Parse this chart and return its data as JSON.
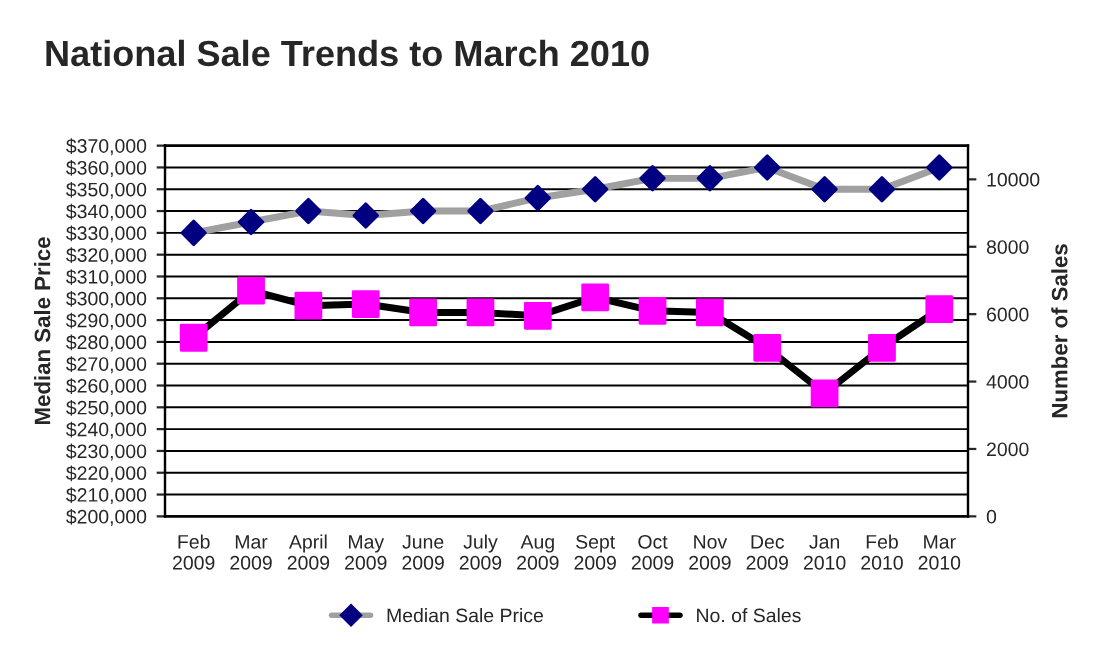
{
  "chart_data": {
    "type": "line",
    "title": "National Sale Trends to March 2010",
    "ylabel": "Median Sale Price",
    "y2label": "Number of Sales",
    "categories": [
      "Feb\n2009",
      "Mar\n2009",
      "April\n2009",
      "May\n2009",
      "June\n2009",
      "July\n2009",
      "Aug\n2009",
      "Sept\n2009",
      "Oct\n2009",
      "Nov\n2009",
      "Dec\n2009",
      "Jan\n2010",
      "Feb\n2010",
      "Mar\n2010"
    ],
    "series": [
      {
        "name": "Median Sale Price",
        "color": "#a0a0a0",
        "colors": [
          "#000080",
          "#000080",
          "#000080",
          "#000080",
          "#000080",
          "#000080",
          "#000080",
          "#000080",
          "#000080",
          "#000080",
          "#000080",
          "#000080",
          "#000080",
          "#000080"
        ],
        "marker": "diamond",
        "values": [
          330000,
          335000,
          340000,
          338000,
          340000,
          340000,
          346000,
          350000,
          355000,
          355000,
          360000,
          350000,
          350000,
          360000
        ]
      },
      {
        "name": "No. of Sales",
        "color": "#000000",
        "colors": [
          "#ff00ff",
          "#ff00ff",
          "#ff00ff",
          "#ff00ff",
          "#ff00ff",
          "#ff00ff",
          "#ff00ff",
          "#ff00ff",
          "#ff00ff",
          "#ff00ff",
          "#ff00ff",
          "#ff00ff",
          "#ff00ff",
          "#ff00ff"
        ],
        "marker": "square",
        "axis": "y2",
        "values": [
          5300,
          6700,
          6250,
          6300,
          6050,
          6050,
          5950,
          6500,
          6100,
          6050,
          5000,
          3650,
          5000,
          6150
        ]
      }
    ],
    "ylim": [
      200000,
      370000
    ],
    "yticks": [
      {
        "value": 200000,
        "label": "$200,000"
      },
      {
        "value": 210000,
        "label": "$210,000"
      },
      {
        "value": 220000,
        "label": "$220,000"
      },
      {
        "value": 230000,
        "label": "$230,000"
      },
      {
        "value": 240000,
        "label": "$240,000"
      },
      {
        "value": 250000,
        "label": "$250,000"
      },
      {
        "value": 260000,
        "label": "$260,000"
      },
      {
        "value": 270000,
        "label": "$270,000"
      },
      {
        "value": 280000,
        "label": "$280,000"
      },
      {
        "value": 290000,
        "label": "$290,000"
      },
      {
        "value": 300000,
        "label": "$300,000"
      },
      {
        "value": 310000,
        "label": "$310,000"
      },
      {
        "value": 320000,
        "label": "$320,000"
      },
      {
        "value": 330000,
        "label": "$330,000"
      },
      {
        "value": 340000,
        "label": "$340,000"
      },
      {
        "value": 350000,
        "label": "$350,000"
      },
      {
        "value": 360000,
        "label": "$360,000"
      },
      {
        "value": 370000,
        "label": "$370,000"
      }
    ],
    "y2lim": [
      0,
      11000
    ],
    "y2ticks": [
      0,
      2000,
      4000,
      6000,
      8000,
      10000
    ],
    "grid": "y",
    "legend": "bottom"
  }
}
